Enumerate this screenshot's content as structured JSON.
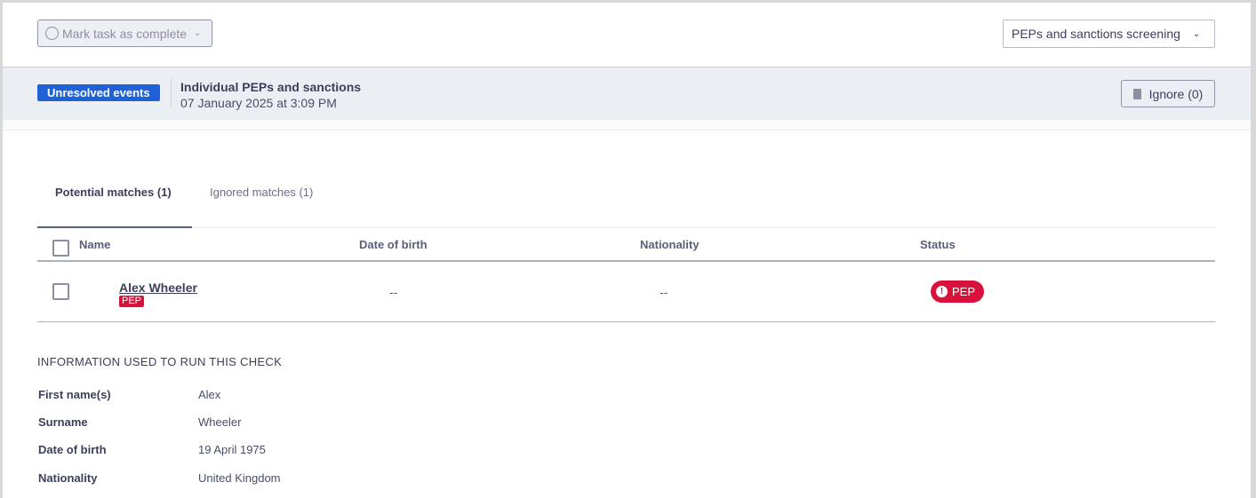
{
  "toolbar": {
    "mark_complete_label": "Mark task as complete",
    "check_select": "PEPs and sanctions screening"
  },
  "event": {
    "badge": "Unresolved events",
    "title": "Individual PEPs and sanctions",
    "date": "07 January 2025 at 3:09 PM",
    "ignore_label": "Ignore (0)"
  },
  "tabs": [
    {
      "label": "Potential matches (1)",
      "active": true
    },
    {
      "label": "Ignored matches (1)",
      "active": false
    }
  ],
  "table": {
    "columns": [
      "Name",
      "Date of birth",
      "Nationality",
      "Status"
    ],
    "rows": [
      {
        "name": "Alex Wheeler",
        "tag": "PEP",
        "dob": "--",
        "nationality": "--",
        "status": "PEP"
      }
    ]
  },
  "info": {
    "heading": "INFORMATION USED TO RUN THIS CHECK",
    "fields": [
      {
        "label": "First name(s)",
        "value": "Alex"
      },
      {
        "label": "Surname",
        "value": "Wheeler"
      },
      {
        "label": "Date of birth",
        "value": "19 April 1975"
      },
      {
        "label": "Nationality",
        "value": "United Kingdom"
      }
    ]
  },
  "colors": {
    "accent": "#1f62d8",
    "danger": "#d8123a"
  }
}
